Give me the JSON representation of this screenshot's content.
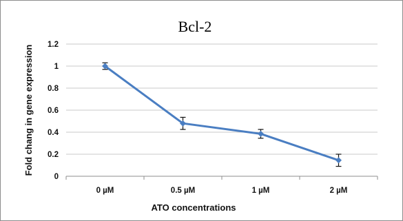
{
  "chart_data": {
    "type": "line",
    "title": "Bcl-2",
    "xlabel": "ATO  concentrations",
    "ylabel": "Fold chang in gene expression",
    "categories": [
      "0 µM",
      "0.5 µM",
      "1 µM",
      "2 µM"
    ],
    "series": [
      {
        "values": [
          1.0,
          0.48,
          0.385,
          0.145
        ],
        "error": [
          0.03,
          0.055,
          0.04,
          0.055
        ],
        "color": "#4a7ec2",
        "marker": "diamond"
      }
    ],
    "ylim": [
      0,
      1.2
    ],
    "yticks": [
      0,
      0.2,
      0.4,
      0.6,
      0.8,
      1,
      1.2
    ],
    "ytick_labels": [
      "0",
      "0.2",
      "0.4",
      "0.6",
      "0.8",
      "1",
      "1.2"
    ],
    "grid": true,
    "legend": "none"
  }
}
